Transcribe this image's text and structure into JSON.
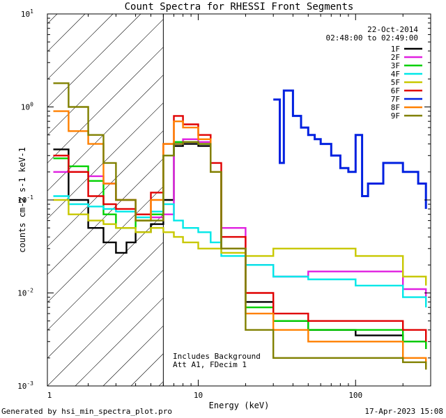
{
  "chart_data": {
    "type": "line",
    "title": "Count Spectra for RHESSI Front Segments",
    "xlabel": "Energy (keV)",
    "ylabel": "counts cm-2 s-1 keV-1",
    "xscale": "log",
    "yscale": "log",
    "xlim": [
      1.1,
      300
    ],
    "ylim": [
      0.001,
      10
    ],
    "x_ticks": [
      "1",
      "10",
      "100"
    ],
    "y_ticks": [
      "10^-3",
      "10^-2",
      "10^-1",
      "10^0",
      "10^1"
    ],
    "shaded_region": {
      "from_keV": 1.1,
      "to_keV": 6.0,
      "note": "hatched excluded band"
    },
    "date": "22-Oct-2014",
    "time_range": "02:48:00 to 02:49:00",
    "annotations": [
      "Includes Background",
      "Att A1, FDecim 1"
    ],
    "legend_position": "top-right",
    "series": [
      {
        "name": "1F",
        "color": "#000000",
        "x": [
          1.2,
          1.5,
          2.0,
          2.5,
          3.0,
          3.5,
          4.0,
          5.0,
          6.0,
          7.0,
          8.0,
          10.0,
          12.0,
          14.0,
          20.0,
          30.0,
          50.0,
          100.0,
          200.0,
          280.0
        ],
        "y": [
          0.35,
          0.1,
          0.05,
          0.035,
          0.027,
          0.035,
          0.045,
          0.055,
          0.1,
          0.38,
          0.4,
          0.38,
          0.2,
          0.03,
          0.008,
          0.005,
          0.004,
          0.0035,
          0.003,
          0.0025
        ]
      },
      {
        "name": "2F",
        "color": "#e020e0",
        "x": [
          1.2,
          1.5,
          2.0,
          2.5,
          3.0,
          4.0,
          5.0,
          6.0,
          7.0,
          8.0,
          10.0,
          12.0,
          14.0,
          20.0,
          30.0,
          50.0,
          100.0,
          200.0,
          280.0
        ],
        "y": [
          0.2,
          0.2,
          0.18,
          0.15,
          0.1,
          0.07,
          0.065,
          0.07,
          0.4,
          0.45,
          0.42,
          0.2,
          0.05,
          0.02,
          0.015,
          0.017,
          0.017,
          0.011,
          0.008
        ]
      },
      {
        "name": "3F",
        "color": "#00d000",
        "x": [
          1.2,
          1.5,
          2.0,
          2.5,
          3.0,
          4.0,
          5.0,
          6.0,
          7.0,
          8.0,
          10.0,
          12.0,
          14.0,
          20.0,
          30.0,
          50.0,
          100.0,
          200.0,
          280.0
        ],
        "y": [
          0.28,
          0.23,
          0.16,
          0.07,
          0.05,
          0.06,
          0.07,
          0.3,
          0.42,
          0.42,
          0.4,
          0.2,
          0.03,
          0.007,
          0.005,
          0.004,
          0.004,
          0.003,
          0.0025
        ]
      },
      {
        "name": "4F",
        "color": "#00e8e8",
        "x": [
          1.2,
          1.5,
          2.0,
          2.5,
          3.0,
          4.0,
          5.0,
          6.0,
          7.0,
          8.0,
          10.0,
          12.0,
          14.0,
          20.0,
          30.0,
          50.0,
          100.0,
          200.0,
          280.0
        ],
        "y": [
          0.11,
          0.09,
          0.085,
          0.08,
          0.075,
          0.065,
          0.075,
          0.09,
          0.06,
          0.05,
          0.045,
          0.035,
          0.025,
          0.02,
          0.015,
          0.014,
          0.012,
          0.009,
          0.007
        ]
      },
      {
        "name": "5F",
        "color": "#c8c800",
        "x": [
          1.2,
          1.5,
          2.0,
          2.5,
          3.0,
          4.0,
          5.0,
          6.0,
          7.0,
          8.0,
          10.0,
          12.0,
          14.0,
          20.0,
          30.0,
          50.0,
          100.0,
          200.0,
          280.0
        ],
        "y": [
          0.1,
          0.07,
          0.06,
          0.055,
          0.05,
          0.045,
          0.05,
          0.045,
          0.04,
          0.035,
          0.03,
          0.03,
          0.027,
          0.025,
          0.03,
          0.03,
          0.025,
          0.015,
          0.012
        ]
      },
      {
        "name": "6F",
        "color": "#e00000",
        "x": [
          1.2,
          1.5,
          2.0,
          2.5,
          3.0,
          4.0,
          5.0,
          6.0,
          7.0,
          8.0,
          10.0,
          12.0,
          14.0,
          20.0,
          30.0,
          50.0,
          100.0,
          200.0,
          280.0
        ],
        "y": [
          0.3,
          0.2,
          0.11,
          0.09,
          0.08,
          0.07,
          0.12,
          0.4,
          0.8,
          0.65,
          0.5,
          0.25,
          0.04,
          0.01,
          0.006,
          0.005,
          0.005,
          0.004,
          0.003
        ]
      },
      {
        "name": "7F",
        "color": "#0020e0",
        "x": [
          30,
          33,
          35,
          40,
          45,
          50,
          55,
          60,
          70,
          80,
          90,
          100,
          110,
          120,
          150,
          200,
          250,
          280
        ],
        "y": [
          1.2,
          0.25,
          1.5,
          0.8,
          0.6,
          0.5,
          0.45,
          0.4,
          0.3,
          0.22,
          0.2,
          0.5,
          0.11,
          0.15,
          0.25,
          0.2,
          0.15,
          0.08
        ]
      },
      {
        "name": "8F",
        "color": "#ff8000",
        "x": [
          1.2,
          1.5,
          2.0,
          2.5,
          3.0,
          4.0,
          5.0,
          6.0,
          7.0,
          8.0,
          10.0,
          12.0,
          14.0,
          20.0,
          30.0,
          50.0,
          100.0,
          200.0,
          280.0
        ],
        "y": [
          0.9,
          0.55,
          0.4,
          0.15,
          0.1,
          0.06,
          0.1,
          0.4,
          0.7,
          0.6,
          0.45,
          0.2,
          0.03,
          0.006,
          0.004,
          0.003,
          0.003,
          0.002,
          0.0015
        ]
      },
      {
        "name": "9F",
        "color": "#808000",
        "x": [
          1.2,
          1.5,
          2.0,
          2.5,
          3.0,
          4.0,
          5.0,
          6.0,
          7.0,
          8.0,
          10.0,
          12.0,
          14.0,
          20.0,
          30.0,
          50.0,
          100.0,
          200.0,
          280.0
        ],
        "y": [
          1.8,
          1.0,
          0.5,
          0.25,
          0.1,
          0.06,
          0.06,
          0.3,
          0.4,
          0.42,
          0.4,
          0.2,
          0.03,
          0.004,
          0.002,
          0.002,
          0.002,
          0.0018,
          0.0015
        ]
      }
    ]
  },
  "footer": {
    "generated_by": "Generated by hsi_min_spectra_plot.pro",
    "timestamp": "17-Apr-2023 15:08"
  }
}
